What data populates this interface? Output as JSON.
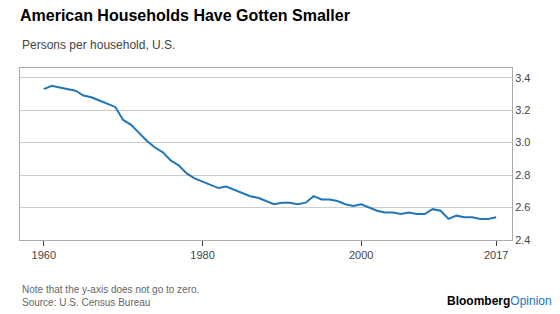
{
  "chart_data": {
    "type": "line",
    "title": "American Households Have Gotten Smaller",
    "subtitle": "Persons per household, U.S.",
    "note": "Note that the y-axis does not go to zero.",
    "source": "Source: U.S. Census Bureau",
    "branding": [
      "Bloomberg",
      "Opinion"
    ],
    "color": "#2175B8",
    "grid": "y",
    "x": [
      1960,
      1961,
      1962,
      1963,
      1964,
      1965,
      1966,
      1967,
      1968,
      1969,
      1970,
      1971,
      1972,
      1973,
      1974,
      1975,
      1976,
      1977,
      1978,
      1979,
      1980,
      1981,
      1982,
      1983,
      1984,
      1985,
      1986,
      1987,
      1988,
      1989,
      1990,
      1991,
      1992,
      1993,
      1994,
      1995,
      1996,
      1997,
      1998,
      1999,
      2000,
      2001,
      2002,
      2003,
      2004,
      2005,
      2006,
      2007,
      2008,
      2009,
      2010,
      2011,
      2012,
      2013,
      2014,
      2015,
      2016,
      2017
    ],
    "values": [
      3.33,
      3.35,
      3.34,
      3.33,
      3.32,
      3.29,
      3.28,
      3.26,
      3.24,
      3.22,
      3.14,
      3.11,
      3.06,
      3.01,
      2.97,
      2.94,
      2.89,
      2.86,
      2.81,
      2.78,
      2.76,
      2.74,
      2.72,
      2.73,
      2.71,
      2.69,
      2.67,
      2.66,
      2.64,
      2.62,
      2.63,
      2.63,
      2.62,
      2.63,
      2.67,
      2.65,
      2.65,
      2.64,
      2.62,
      2.61,
      2.62,
      2.6,
      2.58,
      2.57,
      2.57,
      2.56,
      2.57,
      2.56,
      2.56,
      2.59,
      2.58,
      2.53,
      2.55,
      2.54,
      2.54,
      2.53,
      2.53,
      2.54
    ],
    "xlim": [
      1957,
      2019
    ],
    "xticks": [
      1960,
      1980,
      2000,
      2017
    ],
    "ylim": [
      2.4,
      3.46
    ],
    "yticks": [
      2.4,
      2.6,
      2.8,
      {
        "value": 3,
        "label": "3.0"
      },
      3.2,
      3.4
    ]
  }
}
